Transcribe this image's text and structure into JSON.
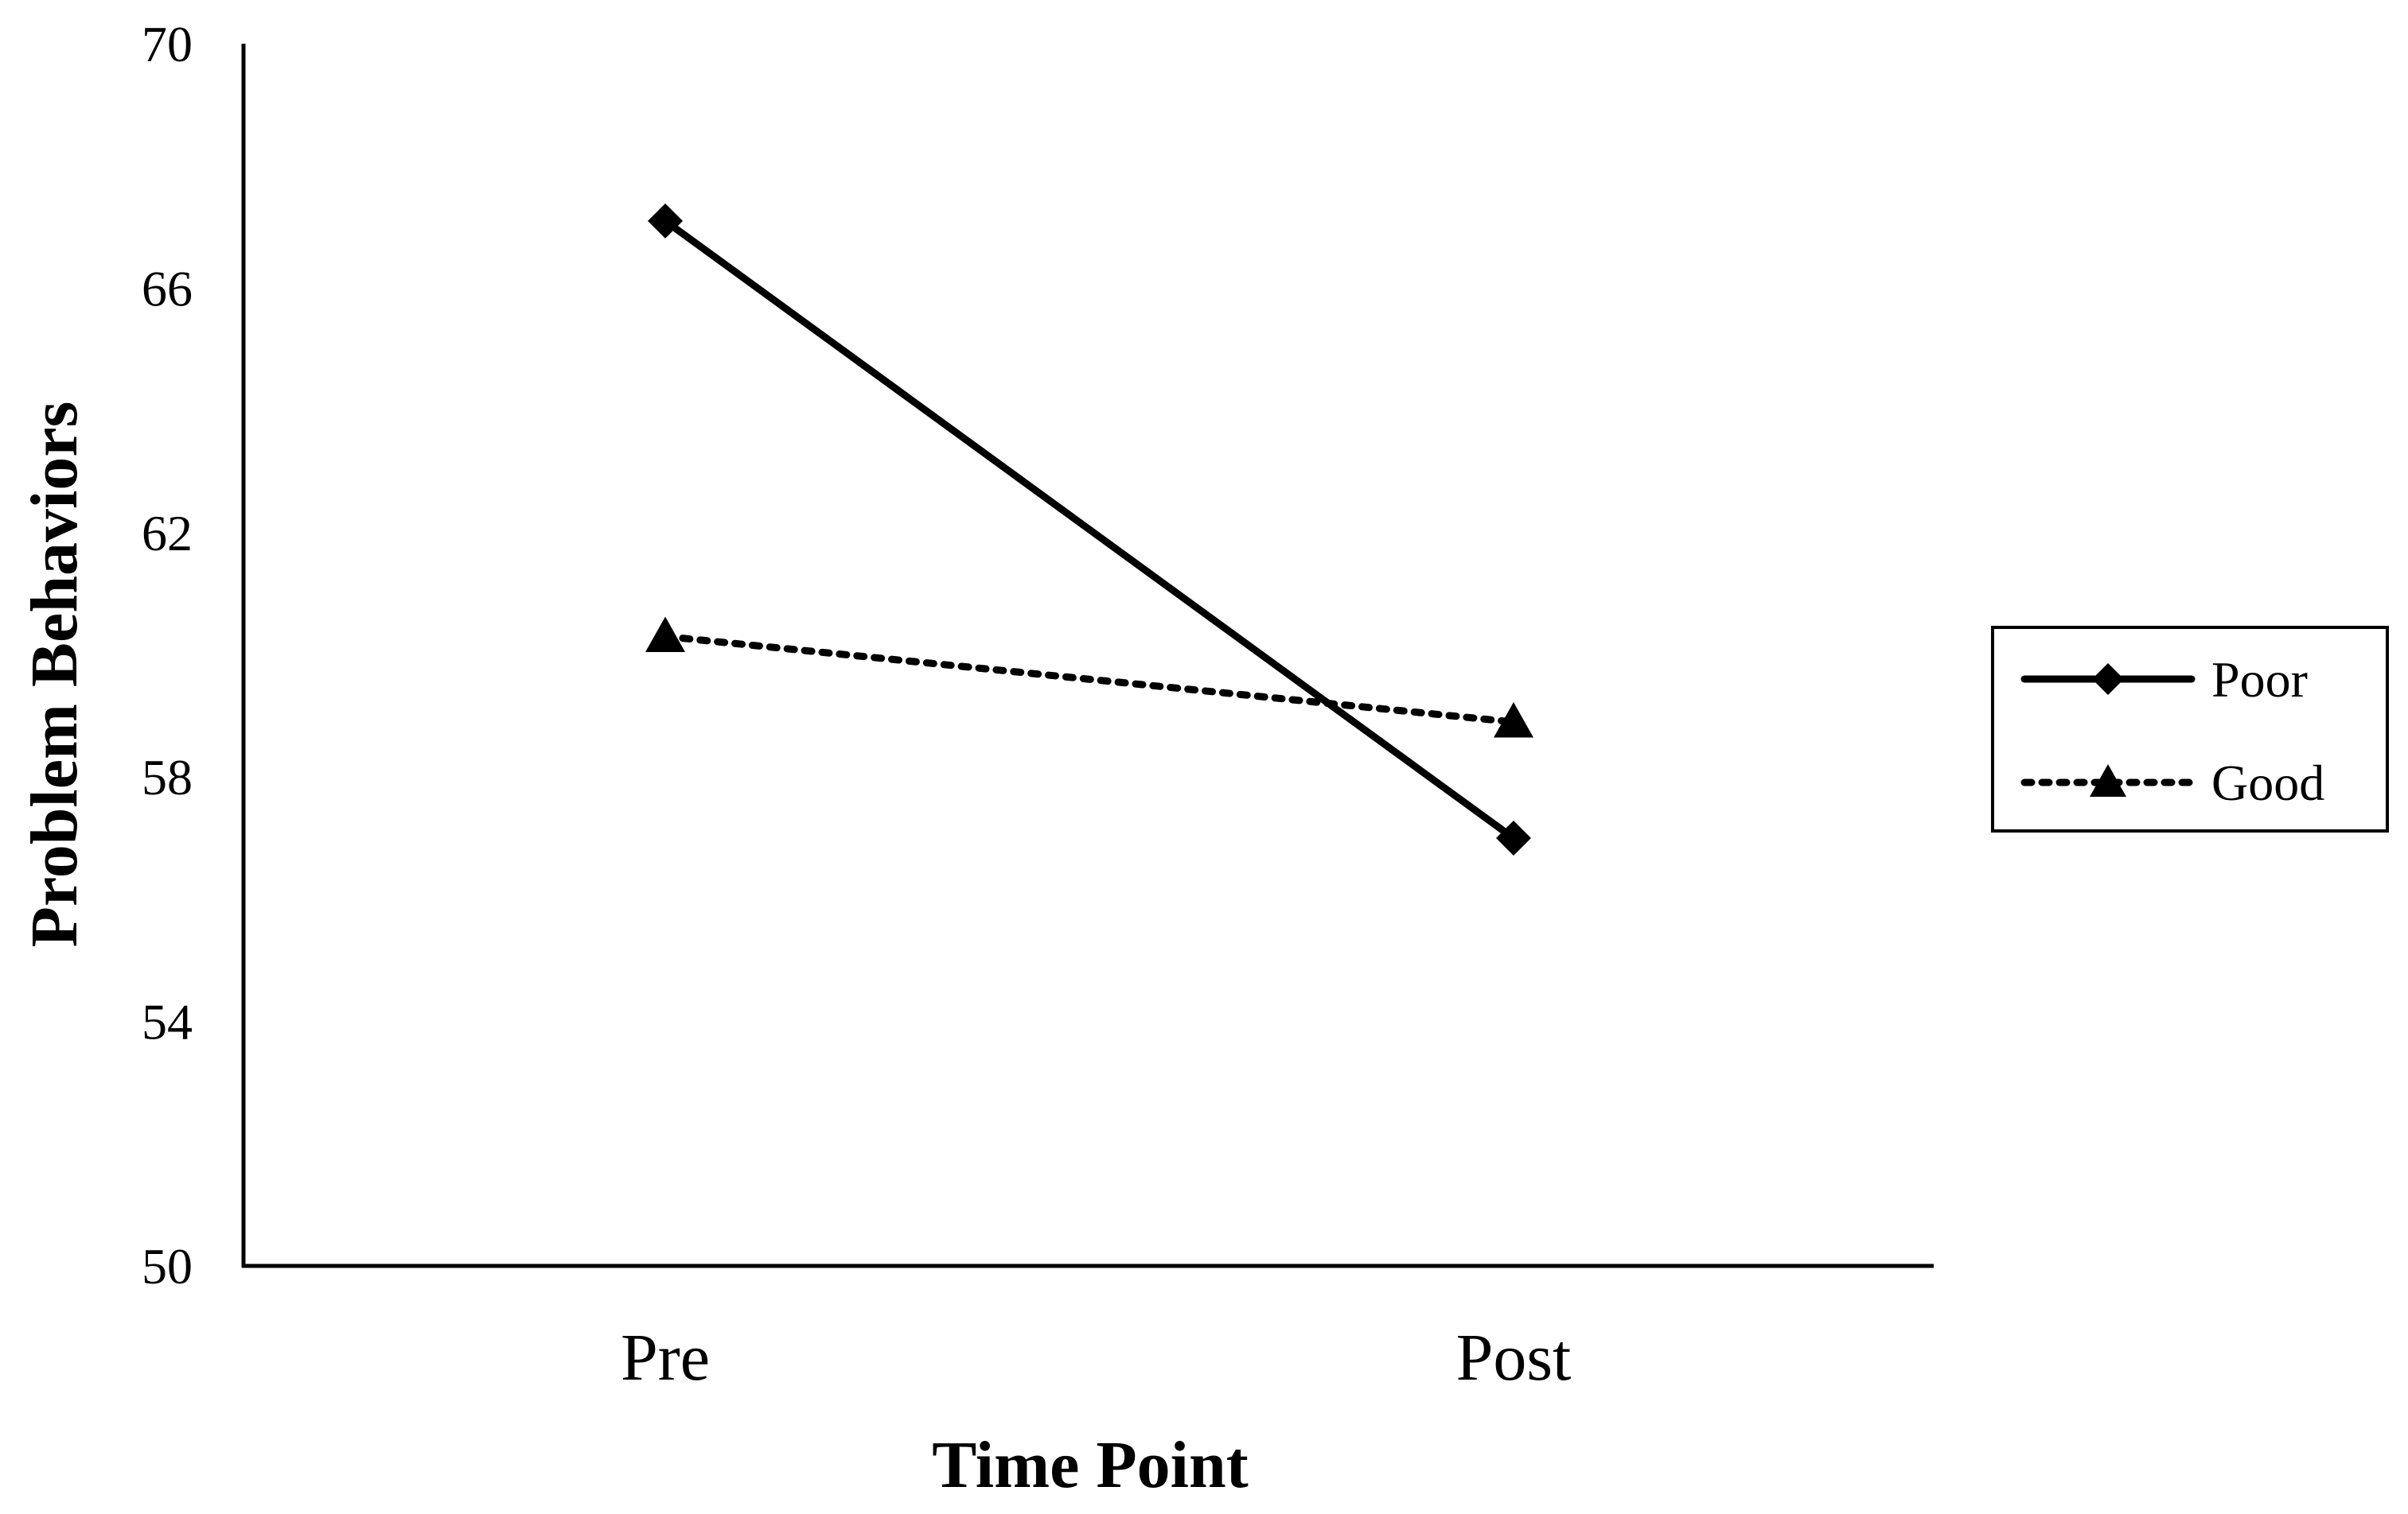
{
  "chart_data": {
    "type": "line",
    "title": "",
    "xlabel": "Time Point",
    "ylabel": "Problem Behaviors",
    "categories": [
      "Pre",
      "Post"
    ],
    "ylim": [
      50,
      70
    ],
    "yticks": [
      50,
      54,
      58,
      62,
      66,
      70
    ],
    "grid": false,
    "legend_position": "right",
    "series": [
      {
        "name": "Poor",
        "values": [
          67.1,
          57.0
        ],
        "line_style": "solid",
        "marker": "diamond",
        "color": "#000000"
      },
      {
        "name": "Good",
        "values": [
          60.3,
          58.9
        ],
        "line_style": "dotted",
        "marker": "triangle",
        "color": "#000000"
      }
    ]
  }
}
